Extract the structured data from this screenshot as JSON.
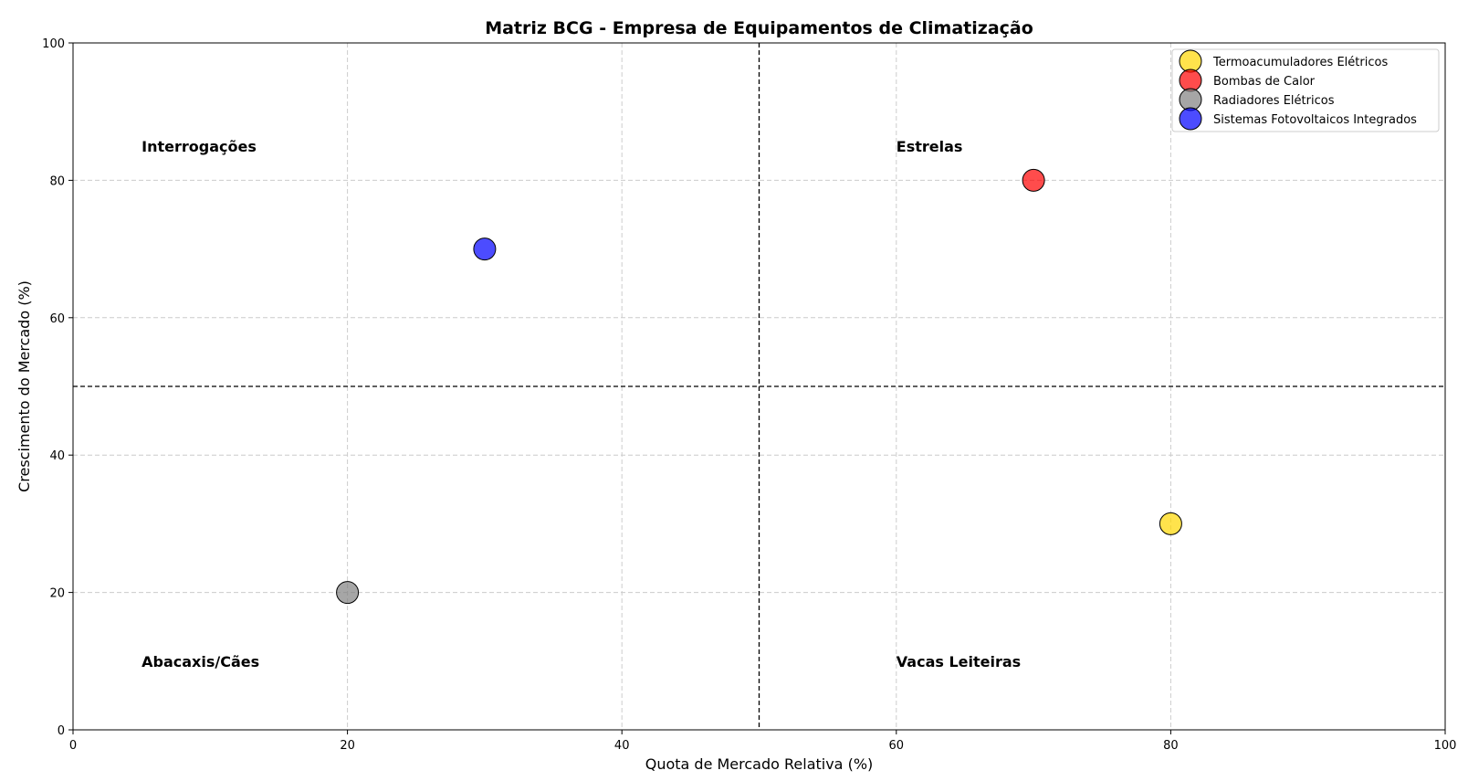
{
  "chart_data": {
    "type": "scatter",
    "title": "Matriz BCG - Empresa de Equipamentos de Climatização",
    "xlabel": "Quota de Mercado Relativa (%)",
    "ylabel": "Crescimento do Mercado (%)",
    "xlim": [
      0,
      100
    ],
    "ylim": [
      0,
      100
    ],
    "xticks": [
      0,
      20,
      40,
      60,
      80,
      100
    ],
    "yticks": [
      0,
      20,
      40,
      60,
      80,
      100
    ],
    "grid": true,
    "legend_position": "top-right",
    "divider_x": 50,
    "divider_y": 50,
    "series": [
      {
        "name": "Termoacumuladores Elétricos",
        "color": "#ffd700",
        "x": [
          80
        ],
        "y": [
          30
        ]
      },
      {
        "name": "Bombas de Calor",
        "color": "#ff0000",
        "x": [
          70
        ],
        "y": [
          80
        ]
      },
      {
        "name": "Radiadores Elétricos",
        "color": "#808080",
        "x": [
          20
        ],
        "y": [
          20
        ]
      },
      {
        "name": "Sistemas Fotovoltaicos Integrados",
        "color": "#0000ff",
        "x": [
          30
        ],
        "y": [
          70
        ]
      }
    ],
    "annotations": [
      {
        "text": "Interrogações",
        "x": 5,
        "y": 85
      },
      {
        "text": "Estrelas",
        "x": 60,
        "y": 85
      },
      {
        "text": "Abacaxis/Cães",
        "x": 5,
        "y": 10
      },
      {
        "text": "Vacas Leiteiras",
        "x": 60,
        "y": 10
      }
    ]
  }
}
